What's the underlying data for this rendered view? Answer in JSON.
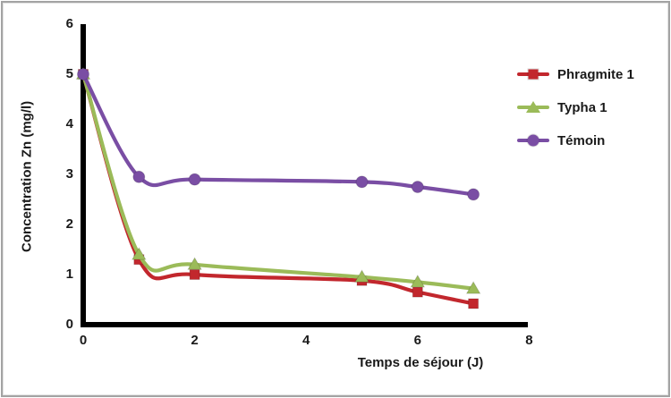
{
  "frame": {
    "background": "#ffffff",
    "border_color": "#a3a3a3"
  },
  "chart_data": {
    "type": "line",
    "title": "",
    "xlabel": "Temps de séjour (J)",
    "ylabel": "Concentration Zn (mg/l)",
    "x": [
      0,
      1,
      2,
      5,
      6,
      7
    ],
    "series": [
      {
        "name": "Phragmite 1",
        "color": "#c2272d",
        "marker": "square",
        "values": [
          5,
          1.3,
          1.0,
          0.88,
          0.65,
          0.42
        ]
      },
      {
        "name": "Typha 1",
        "color": "#9bbb59",
        "marker": "triangle",
        "values": [
          5,
          1.4,
          1.2,
          0.95,
          0.85,
          0.72
        ]
      },
      {
        "name": "Témoin",
        "color": "#7a4ea4",
        "marker": "circle",
        "values": [
          5,
          2.95,
          2.9,
          2.85,
          2.75,
          2.6
        ]
      }
    ],
    "xticks": [
      0,
      2,
      4,
      6,
      8
    ],
    "yticks": [
      0,
      1,
      2,
      3,
      4,
      5,
      6
    ],
    "xlim": [
      0,
      8
    ],
    "ylim": [
      0,
      6
    ],
    "grid": false,
    "smooth_lines": true,
    "legend_position": "right",
    "axis_color": "#000000",
    "text_color": "#1a1a1a"
  }
}
